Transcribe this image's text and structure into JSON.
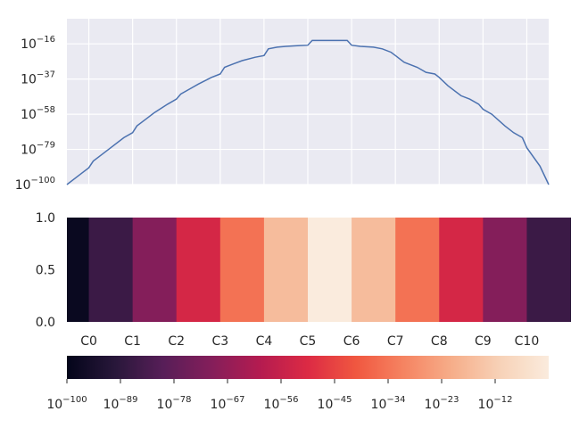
{
  "chart_data": [
    {
      "type": "line",
      "yscale": "log",
      "xlim": [
        -0.5,
        10.5
      ],
      "ylim_exponent": [
        -100,
        -1
      ],
      "y_ticks": [
        {
          "base": "10",
          "exp": "−100",
          "value": -100
        },
        {
          "base": "10",
          "exp": "−79",
          "value": -79
        },
        {
          "base": "10",
          "exp": "−58",
          "value": -58
        },
        {
          "base": "10",
          "exp": "−37",
          "value": -37
        },
        {
          "base": "10",
          "exp": "−16",
          "value": -16
        }
      ],
      "x_gridlines": [
        0,
        1,
        2,
        3,
        4,
        5,
        6,
        7,
        8,
        9,
        10
      ],
      "xticklabels_shown": false,
      "grid": true,
      "background": "#eaeaf2",
      "line_color": "#4c72b0",
      "series": [
        {
          "x": [
            -0.5,
            -0.2,
            0,
            0.1,
            0.3,
            0.5,
            0.8,
            1.0,
            1.1,
            1.3,
            1.5,
            1.8,
            2.0,
            2.1,
            2.3,
            2.5,
            2.8,
            3.0,
            3.1,
            3.3,
            3.5,
            3.8,
            4.0,
            4.1,
            4.3,
            4.5,
            4.8,
            5.0,
            5.1,
            5.3,
            5.5,
            5.7,
            5.9,
            6.0,
            6.2,
            6.5,
            6.7,
            6.9,
            7.0,
            7.2,
            7.5,
            7.7,
            7.9,
            8.0,
            8.2,
            8.5,
            8.7,
            8.9,
            9.0,
            9.2,
            9.5,
            9.7,
            9.9,
            10.0,
            10.3,
            10.5
          ],
          "y_log10": [
            -100,
            -94,
            -90,
            -86,
            -82,
            -78,
            -72,
            -69,
            -65,
            -61,
            -57,
            -52,
            -49,
            -46,
            -43,
            -40,
            -36,
            -34,
            -30,
            -28,
            -26,
            -24,
            -23,
            -19,
            -18,
            -17.5,
            -17,
            -16.8,
            -14,
            -14,
            -14,
            -14,
            -14,
            -16.8,
            -17.5,
            -18,
            -19,
            -21,
            -23,
            -27,
            -30,
            -33,
            -34,
            -36,
            -41,
            -47,
            -49,
            -52,
            -55,
            -58,
            -65,
            -69,
            -72,
            -78,
            -89,
            -100
          ]
        }
      ]
    },
    {
      "type": "heatmap",
      "categories": [
        "C0",
        "C1",
        "C2",
        "C3",
        "C4",
        "C5",
        "C6",
        "C7",
        "C8",
        "C9",
        "C10"
      ],
      "y_ticks": [
        "0.0",
        "0.5",
        "1.0"
      ],
      "ylim": [
        0,
        1
      ],
      "cell_values": [
        0.02,
        0.14,
        0.3,
        0.48,
        0.66,
        0.84,
        1.0,
        0.84,
        0.66,
        0.48,
        0.3,
        0.14,
        0.02
      ],
      "half_cells": [
        0,
        12
      ]
    },
    {
      "type": "colorbar",
      "orientation": "horizontal",
      "colormap": "rocket",
      "ticks": [
        {
          "base": "10",
          "exp": "−100"
        },
        {
          "base": "10",
          "exp": "−89"
        },
        {
          "base": "10",
          "exp": "−78"
        },
        {
          "base": "10",
          "exp": "−67"
        },
        {
          "base": "10",
          "exp": "−56"
        },
        {
          "base": "10",
          "exp": "−45"
        },
        {
          "base": "10",
          "exp": "−34"
        },
        {
          "base": "10",
          "exp": "−23"
        },
        {
          "base": "10",
          "exp": "−12"
        }
      ],
      "range_exponent": [
        -100,
        -1
      ]
    }
  ]
}
